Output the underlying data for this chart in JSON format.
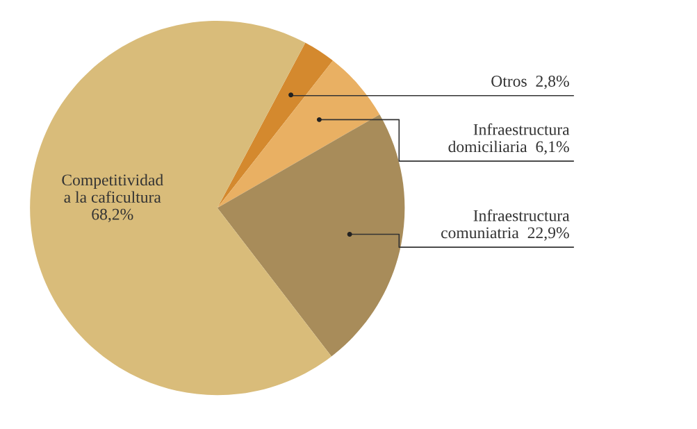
{
  "chart_data": {
    "type": "pie",
    "categories": [
      "Otros",
      "Infraestructura\ndomiciliaria",
      "Infraestructura\ncomuniatria",
      "Competitividad\na la caficultura"
    ],
    "values": [
      2.8,
      6.1,
      22.9,
      68.2
    ],
    "value_labels": [
      "2,8%",
      "6,1%",
      "22,9%",
      "68,2%"
    ],
    "colors": [
      "#d4892e",
      "#e9b063",
      "#a88c5a",
      "#d9bc7a"
    ]
  }
}
